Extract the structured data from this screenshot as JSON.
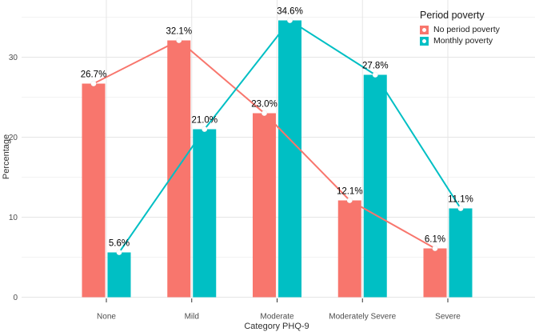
{
  "chart_data": {
    "type": "bar",
    "subtype": "grouped-bars-with-line-and-point-overlay",
    "categories": [
      "None",
      "Mild",
      "Moderate",
      "Moderately Severe",
      "Severe"
    ],
    "series": [
      {
        "name": "No period poverty",
        "color": "#F8766D",
        "values": [
          26.7,
          32.1,
          23.0,
          12.1,
          6.1
        ],
        "labels": [
          "26.7%",
          "32.1%",
          "23.0%",
          "12.1%",
          "6.1%"
        ]
      },
      {
        "name": "Monthly poverty",
        "color": "#00BFC4",
        "values": [
          5.6,
          21.0,
          34.6,
          27.8,
          11.1
        ],
        "labels": [
          "5.6%",
          "21.0%",
          "34.6%",
          "27.8%",
          "11.1%"
        ]
      }
    ],
    "xlabel": "Category PHQ-9",
    "ylabel": "Percentage",
    "y_ticks": [
      0,
      10,
      20,
      30
    ],
    "y_minor_ticks": [
      5,
      15,
      25,
      35
    ],
    "ylim": [
      0,
      36.5
    ],
    "grid": "major and minor horizontal, major vertical at categories",
    "legend": {
      "title": "Period poverty",
      "position": "top-right",
      "marker": "filled square with white point"
    },
    "point_marker_color": "#ffffff",
    "colors": {
      "background": "#ffffff",
      "major_grid": "#e5e5e5",
      "minor_grid": "#f3f3f3",
      "tick_label": "#4d4d4d",
      "axis_title": "#303030",
      "data_label": "#000000",
      "tick_mark": "#333333"
    }
  }
}
